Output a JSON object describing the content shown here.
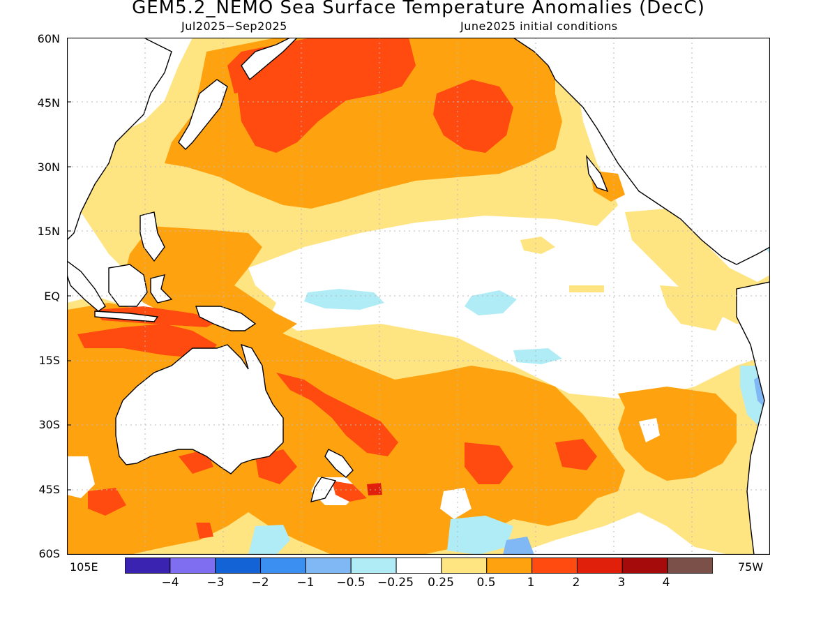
{
  "title": "GEM5.2_NEMO Sea Surface Temperature Anomalies (DecC)",
  "subtitle_left": "Jul2025−Sep2025",
  "subtitle_right": "June2025 initial conditions",
  "y_ticks": [
    "60N",
    "45N",
    "30N",
    "15N",
    "EQ",
    "15S",
    "30S",
    "45S",
    "60S"
  ],
  "x_ticks": {
    "left": "105E",
    "right": "75W"
  },
  "colorbar": {
    "labels": [
      "−4",
      "−3",
      "−2",
      "−1",
      "−0.5",
      "−0.25",
      "0.25",
      "0.5",
      "1",
      "2",
      "3",
      "4"
    ],
    "colors": [
      "#3a23b0",
      "#7f6ef0",
      "#1463d6",
      "#3b8ff0",
      "#7fb8f5",
      "#b0ecf5",
      "#ffffff",
      "#ffe482",
      "#ffa210",
      "#ff4a10",
      "#e0200a",
      "#a50b0b",
      "#7a5048"
    ]
  },
  "legend_colors": {
    "ocean": "#ffffff",
    "weak_warm": "#ffe482",
    "warm": "#ffa210",
    "hot": "#ff4a10",
    "very_hot": "#e0200a",
    "extreme": "#a50b0b",
    "weak_cool": "#b0ecf5",
    "cool": "#7fb8f5",
    "coast": "#000000",
    "grid": "#b8b8b8"
  }
}
